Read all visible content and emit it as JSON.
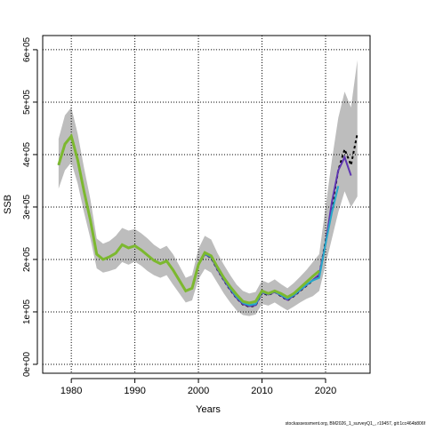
{
  "chart_data": {
    "type": "line",
    "xlabel": "Years",
    "ylabel": "SSB",
    "footnote": "stockassessment.org, BM2026_1_surveyQ1_, r19457, git:1cc464b806f",
    "x": [
      1978,
      1979,
      1980,
      1981,
      1982,
      1983,
      1984,
      1985,
      1986,
      1987,
      1988,
      1989,
      1990,
      1991,
      1992,
      1993,
      1994,
      1995,
      1996,
      1997,
      1998,
      1999,
      2000,
      2001,
      2002,
      2003,
      2004,
      2005,
      2006,
      2007,
      2008,
      2009,
      2010,
      2011,
      2012,
      2013,
      2014,
      2015,
      2016,
      2017,
      2018,
      2019,
      2020,
      2021,
      2022,
      2023,
      2024,
      2025
    ],
    "band": {
      "color": "#bdbdbd",
      "upper": [
        430000,
        475000,
        490000,
        440000,
        375000,
        315000,
        240000,
        230000,
        235000,
        245000,
        260000,
        255000,
        258000,
        250000,
        240000,
        228000,
        220000,
        226000,
        210000,
        188000,
        165000,
        170000,
        220000,
        245000,
        238000,
        212000,
        190000,
        170000,
        152000,
        140000,
        135000,
        138000,
        160000,
        155000,
        162000,
        153000,
        145000,
        155000,
        167000,
        180000,
        195000,
        210000,
        300000,
        390000,
        470000,
        520000,
        490000,
        580000
      ],
      "lower": [
        335000,
        370000,
        385000,
        345000,
        290000,
        240000,
        183000,
        175000,
        178000,
        182000,
        195000,
        190000,
        196000,
        188000,
        178000,
        170000,
        165000,
        170000,
        152000,
        135000,
        118000,
        122000,
        162000,
        182000,
        175000,
        155000,
        135000,
        118000,
        103000,
        94000,
        92000,
        95000,
        115000,
        112000,
        118000,
        110000,
        103000,
        110000,
        118000,
        125000,
        130000,
        140000,
        190000,
        240000,
        290000,
        330000,
        300000,
        320000
      ]
    },
    "series": [
      {
        "color": "#000000",
        "dash": true,
        "width": 2,
        "values": [
          380000,
          420000,
          435000,
          390000,
          330000,
          275000,
          210000,
          200000,
          205000,
          212000,
          228000,
          222000,
          226000,
          218000,
          208000,
          198000,
          192000,
          197000,
          180000,
          160000,
          140000,
          145000,
          190000,
          210000,
          203000,
          180000,
          160000,
          142000,
          126000,
          114000,
          110000,
          112000,
          136000,
          132000,
          138000,
          130000,
          122000,
          130000,
          140000,
          150000,
          160000,
          170000,
          235000,
          300000,
          370000,
          410000,
          380000,
          440000
        ]
      },
      {
        "color": "#5e35b1",
        "dash": false,
        "width": 2,
        "values": [
          380000,
          420000,
          435000,
          390000,
          330000,
          275000,
          210000,
          200000,
          205000,
          212000,
          228000,
          222000,
          226000,
          218000,
          208000,
          198000,
          192000,
          197000,
          180000,
          160000,
          140000,
          145000,
          190000,
          210000,
          204000,
          181000,
          161000,
          143000,
          127000,
          115000,
          111000,
          113000,
          137000,
          133000,
          138000,
          131000,
          123000,
          131000,
          141000,
          151000,
          161000,
          171000,
          230000,
          310000,
          370000,
          395000,
          360000,
          null
        ]
      },
      {
        "color": "#26a9c9",
        "dash": false,
        "width": 2,
        "values": [
          380000,
          420000,
          435000,
          390000,
          330000,
          275000,
          210000,
          200000,
          205000,
          212000,
          228000,
          222000,
          226000,
          218000,
          208000,
          198000,
          192000,
          197000,
          180000,
          160000,
          140000,
          145000,
          190000,
          211000,
          205000,
          183000,
          163000,
          145000,
          129000,
          117000,
          113000,
          115000,
          138000,
          134000,
          139000,
          132000,
          125000,
          132000,
          142000,
          152000,
          160000,
          165000,
          230000,
          290000,
          340000,
          null,
          null,
          null
        ]
      },
      {
        "color": "#7cb82f",
        "dash": false,
        "width": 3,
        "values": [
          380000,
          420000,
          435000,
          390000,
          330000,
          275000,
          210000,
          200000,
          205000,
          212000,
          228000,
          222000,
          226000,
          218000,
          208000,
          198000,
          192000,
          197000,
          180000,
          160000,
          140000,
          145000,
          190000,
          213000,
          207000,
          185000,
          165000,
          148000,
          133000,
          120000,
          117000,
          120000,
          140000,
          135000,
          140000,
          135000,
          128000,
          135000,
          146000,
          157000,
          168000,
          178000,
          null,
          null,
          null,
          null,
          null,
          null
        ]
      }
    ],
    "xlim": [
      1975.5,
      2027
    ],
    "xticks": [
      1980,
      1990,
      2000,
      2010,
      2020
    ],
    "ylim": [
      -17000,
      627000
    ],
    "yticks": [
      {
        "value": 0,
        "label": "0e+00"
      },
      {
        "value": 100000,
        "label": "1e+05"
      },
      {
        "value": 200000,
        "label": "2e+05"
      },
      {
        "value": 300000,
        "label": "3e+05"
      },
      {
        "value": 400000,
        "label": "4e+05"
      },
      {
        "value": 500000,
        "label": "5e+05"
      },
      {
        "value": 600000,
        "label": "6e+05"
      }
    ],
    "grid": true
  }
}
